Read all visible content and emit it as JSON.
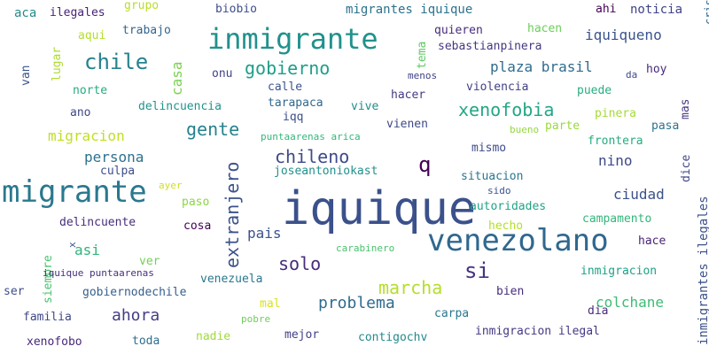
{
  "words": [
    {
      "text": "iquique",
      "color": "#3b518b"
    },
    {
      "text": "venezolano",
      "color": "#30688e"
    },
    {
      "text": "migrante",
      "color": "#2a788e"
    },
    {
      "text": "inmigrante",
      "color": "#21918c"
    },
    {
      "text": "chile",
      "color": "#26828e"
    },
    {
      "text": "gobierno",
      "color": "#1f9e89"
    },
    {
      "text": "q",
      "color": "#440154"
    },
    {
      "text": "si",
      "color": "#46337f"
    },
    {
      "text": "xenofobia",
      "color": "#22a785"
    },
    {
      "text": "marcha",
      "color": "#b5de2b"
    },
    {
      "text": "chileno",
      "color": "#3e4a89"
    },
    {
      "text": "gente",
      "color": "#26828e"
    },
    {
      "text": "extranjero",
      "color": "#3b528b"
    },
    {
      "text": "solo",
      "color": "#472c7a"
    },
    {
      "text": "problema",
      "color": "#2f6b8e"
    },
    {
      "text": "ahora",
      "color": "#433d84"
    },
    {
      "text": "plaza brasil",
      "color": "#2f6c8e"
    },
    {
      "text": "iquiqueno",
      "color": "#3a548c"
    },
    {
      "text": "ciudad",
      "color": "#3b528b"
    },
    {
      "text": "colchane",
      "color": "#3dbc74"
    },
    {
      "text": "nino",
      "color": "#3e4989"
    },
    {
      "text": "persona",
      "color": "#2c728e"
    },
    {
      "text": "pais",
      "color": "#3b528b"
    },
    {
      "text": "migracion",
      "color": "#c2df23"
    },
    {
      "text": "casa",
      "color": "#7ad151"
    },
    {
      "text": "migrantes iquique",
      "color": "#2c738e"
    },
    {
      "text": "noticia",
      "color": "#404387"
    },
    {
      "text": "aca",
      "color": "#228b8d"
    },
    {
      "text": "ilegales",
      "color": "#482374"
    },
    {
      "text": "grupo",
      "color": "#b8de29"
    },
    {
      "text": "biobio",
      "color": "#3d4e8a"
    },
    {
      "text": "ahi",
      "color": "#440154"
    },
    {
      "text": "crisis",
      "color": "#31678e"
    },
    {
      "text": "aqui",
      "color": "#b5de2b"
    },
    {
      "text": "trabajo",
      "color": "#32658e"
    },
    {
      "text": "hacen",
      "color": "#6ccd5a"
    },
    {
      "text": "quieren",
      "color": "#472c7a"
    },
    {
      "text": "sebastianpinera",
      "color": "#453781"
    },
    {
      "text": "tema",
      "color": "#5ec962"
    },
    {
      "text": "van",
      "color": "#39568c"
    },
    {
      "text": "lugar",
      "color": "#addc30"
    },
    {
      "text": "menos",
      "color": "#404387"
    },
    {
      "text": "da",
      "color": "#3e4989"
    },
    {
      "text": "hoy",
      "color": "#472a7a"
    },
    {
      "text": "onu",
      "color": "#404387"
    },
    {
      "text": "violencia",
      "color": "#424086"
    },
    {
      "text": "calle",
      "color": "#3a548c"
    },
    {
      "text": "norte",
      "color": "#25ab82"
    },
    {
      "text": "puede",
      "color": "#26ad81"
    },
    {
      "text": "hacer",
      "color": "#443a83"
    },
    {
      "text": "tarapaca",
      "color": "#31688e"
    },
    {
      "text": "iqq",
      "color": "#3c508b"
    },
    {
      "text": "vive",
      "color": "#228d8d"
    },
    {
      "text": "mas",
      "color": "#453882"
    },
    {
      "text": "pinera",
      "color": "#a5db36"
    },
    {
      "text": "ano",
      "color": "#3f4788"
    },
    {
      "text": "delincuencia",
      "color": "#20928c"
    },
    {
      "text": "parte",
      "color": "#9bd93c"
    },
    {
      "text": "pasa",
      "color": "#2c738e"
    },
    {
      "text": "vienen",
      "color": "#3e4989"
    },
    {
      "text": "bueno",
      "color": "#95d840"
    },
    {
      "text": "frontera",
      "color": "#26ad81"
    },
    {
      "text": "puntaarenas arica",
      "color": "#35b779"
    },
    {
      "text": "mismo",
      "color": "#3e4c8a"
    },
    {
      "text": "dice",
      "color": "#404688"
    },
    {
      "text": "culpa",
      "color": "#3c4f8a"
    },
    {
      "text": "joseantoniokast",
      "color": "#21918c"
    },
    {
      "text": "ayer",
      "color": "#d0e11c"
    },
    {
      "text": "situacion",
      "color": "#2a768e"
    },
    {
      "text": "sido",
      "color": "#3b528b"
    },
    {
      "text": "paso",
      "color": "#8bd646"
    },
    {
      "text": "autoridades",
      "color": "#20a386"
    },
    {
      "text": "delincuente",
      "color": "#472d7b"
    },
    {
      "text": "campamento",
      "color": "#32b67a"
    },
    {
      "text": "inmigrantes ilegales",
      "color": "#3b528b"
    },
    {
      "text": "cosa",
      "color": "#440154"
    },
    {
      "text": "hecho",
      "color": "#b5de2b"
    },
    {
      "text": "asi",
      "color": "#2fb47c"
    },
    {
      "text": "hace",
      "color": "#482475"
    },
    {
      "text": "siempre",
      "color": "#4ac16d"
    },
    {
      "text": "x",
      "color": "#3b528b"
    },
    {
      "text": "carabinero",
      "color": "#4ac16d"
    },
    {
      "text": "ver",
      "color": "#73d056"
    },
    {
      "text": "iquique puntaarenas",
      "color": "#46307e"
    },
    {
      "text": "venezuela",
      "color": "#2a788e"
    },
    {
      "text": "inmigracion",
      "color": "#1fa187"
    },
    {
      "text": "ser",
      "color": "#3d4e8a"
    },
    {
      "text": "gobiernodechile",
      "color": "#355f8d"
    },
    {
      "text": "bien",
      "color": "#472d7b"
    },
    {
      "text": "mal",
      "color": "#d8e219"
    },
    {
      "text": "familia",
      "color": "#3f4788"
    },
    {
      "text": "pobre",
      "color": "#6ece58"
    },
    {
      "text": "carpa",
      "color": "#2a778e"
    },
    {
      "text": "dia",
      "color": "#472c7a"
    },
    {
      "text": "xenofobo",
      "color": "#482878"
    },
    {
      "text": "toda",
      "color": "#2e6e8e"
    },
    {
      "text": "nadie",
      "color": "#9fda3a"
    },
    {
      "text": "mejor",
      "color": "#424086"
    },
    {
      "text": "contigochv",
      "color": "#238a8d"
    },
    {
      "text": "inmigracion ilegal",
      "color": "#443983"
    }
  ]
}
